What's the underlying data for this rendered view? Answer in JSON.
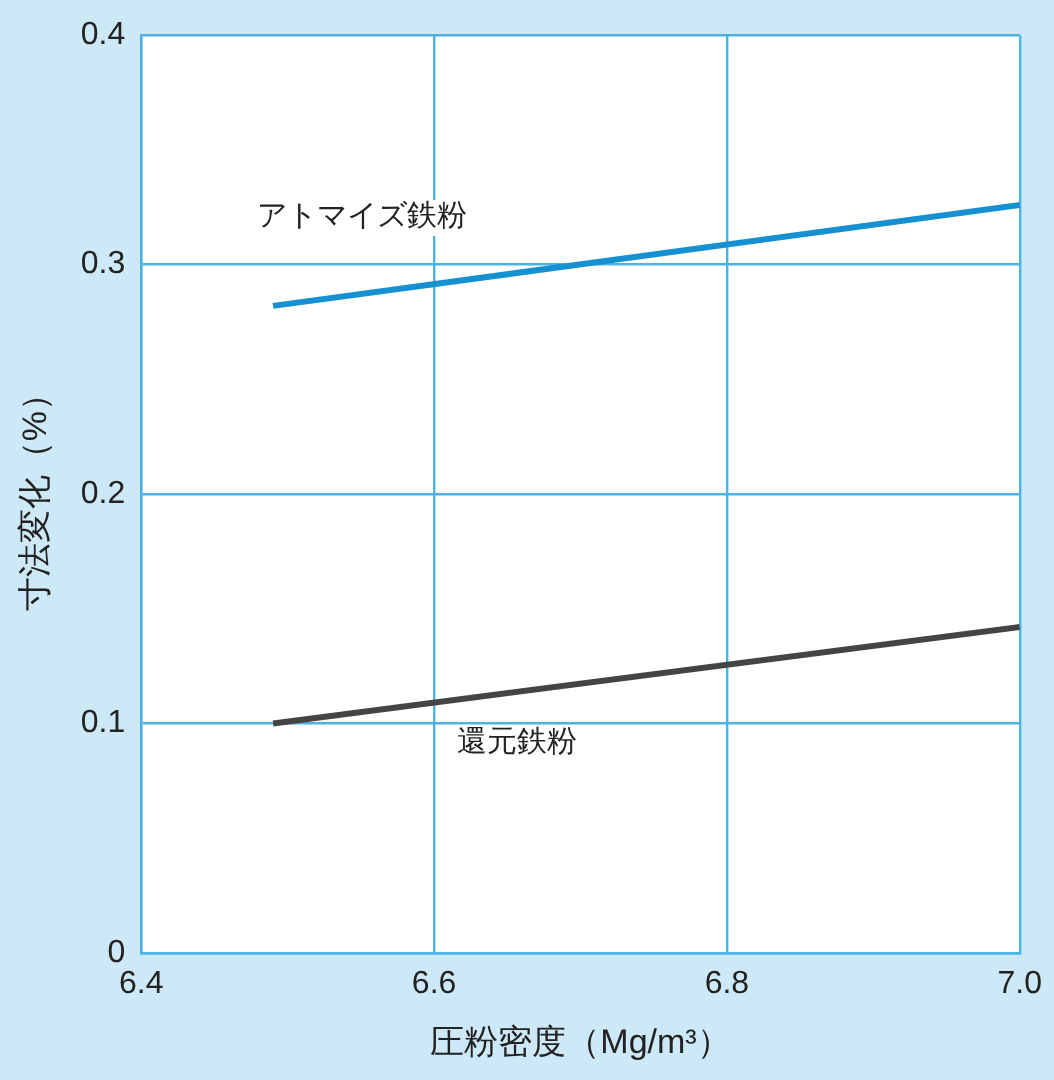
{
  "chart_data": {
    "type": "line",
    "xlabel": "圧粉密度（Mg/m³）",
    "ylabel": "寸法変化（%）",
    "xlim": [
      6.4,
      7.0
    ],
    "xticks": [
      6.4,
      6.6,
      6.8,
      {
        "value": 7.0,
        "label": "7.0"
      }
    ],
    "ylim": [
      0,
      0.4
    ],
    "yticks": [
      0,
      0.1,
      0.2,
      0.3,
      0.4
    ],
    "grid": true,
    "marker": "none",
    "line_style": "solid",
    "x": [
      6.49,
      7.0
    ],
    "series": [
      {
        "name": "アトマイズ鉄粉",
        "color": "#1590d0",
        "values": [
          0.282,
          0.326
        ]
      },
      {
        "name": "還元鉄粉",
        "color": "#444444",
        "values": [
          0.1,
          0.142
        ]
      }
    ]
  }
}
